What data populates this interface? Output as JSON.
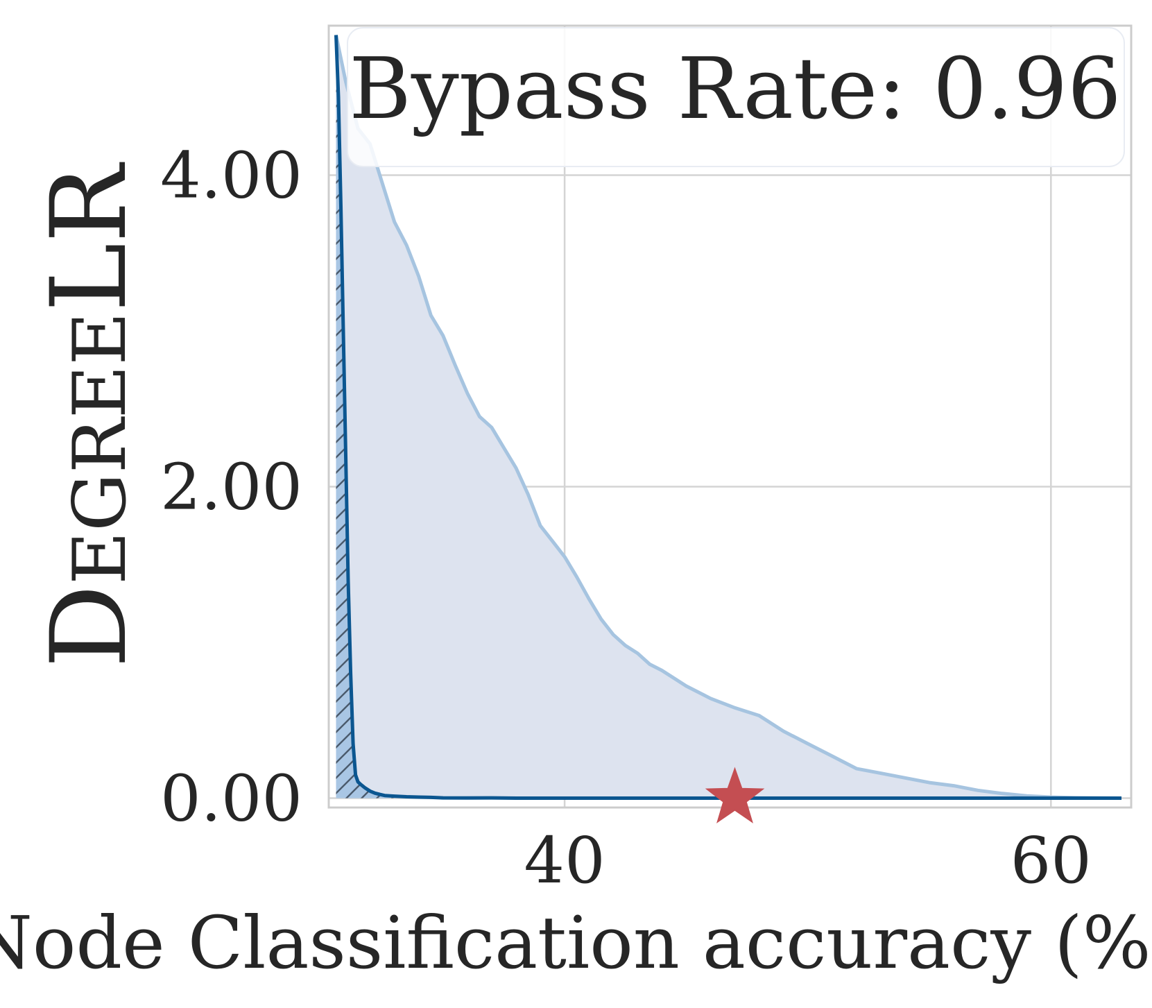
{
  "chart_data": {
    "type": "area",
    "xlabel": "Node Classification accuracy (%)",
    "ylabel": "DegreeLR",
    "annotation": "Bypass Rate: 0.96",
    "xlim": [
      30.3,
      63.3
    ],
    "ylim": [
      -0.06,
      4.96
    ],
    "xticks": [
      40,
      60
    ],
    "xtick_labels": [
      "40",
      "60"
    ],
    "yticks": [
      0,
      2,
      4
    ],
    "ytick_labels": [
      "0.00",
      "2.00",
      "4.00"
    ],
    "grid": true,
    "series": [
      {
        "role": "upper-envelope",
        "color": "#a6c4e0",
        "fill": "#dde3ef",
        "x": [
          30.6,
          31.0,
          31.5,
          32.0,
          32.5,
          33.0,
          33.5,
          34.0,
          34.5,
          35.0,
          35.5,
          36.0,
          36.5,
          37.0,
          37.5,
          38.0,
          38.5,
          39.0,
          39.5,
          40.0,
          40.5,
          41.0,
          41.5,
          42.0,
          42.5,
          43.0,
          43.5,
          44.0,
          45.0,
          46.0,
          47.0,
          48.0,
          49.0,
          50.0,
          51.0,
          52.0,
          53.0,
          54.0,
          55.0,
          56.0,
          57.0,
          58.0,
          59.0,
          60.0,
          61.0,
          62.0,
          62.9
        ],
        "y": [
          4.9,
          4.6,
          4.3,
          4.2,
          3.95,
          3.7,
          3.55,
          3.35,
          3.1,
          2.97,
          2.78,
          2.6,
          2.45,
          2.38,
          2.25,
          2.12,
          1.95,
          1.75,
          1.65,
          1.55,
          1.42,
          1.28,
          1.15,
          1.05,
          0.98,
          0.93,
          0.86,
          0.82,
          0.72,
          0.64,
          0.58,
          0.53,
          0.43,
          0.35,
          0.27,
          0.19,
          0.16,
          0.13,
          0.1,
          0.08,
          0.05,
          0.03,
          0.015,
          0.007,
          0.003,
          0.001,
          0.0
        ]
      },
      {
        "role": "median",
        "color": "#0b5690",
        "fill": "#a9c6e4",
        "hatched": true,
        "x": [
          30.6,
          30.7,
          30.8,
          30.9,
          31.0,
          31.1,
          31.2,
          31.3,
          31.4,
          31.5,
          31.6,
          31.8,
          32.0,
          32.2,
          32.4,
          32.6,
          33.0,
          33.5,
          34.0,
          34.5,
          35.0,
          36.0,
          37.0,
          38.0,
          40.0,
          45.0,
          50.0,
          55.0,
          60.0,
          62.9
        ],
        "y": [
          4.9,
          4.5,
          3.8,
          3.0,
          2.2,
          1.4,
          0.8,
          0.35,
          0.15,
          0.105,
          0.09,
          0.065,
          0.045,
          0.032,
          0.024,
          0.017,
          0.013,
          0.009,
          0.007,
          0.005,
          0.002,
          0.001,
          0.002,
          0.0,
          0.0,
          0.0,
          0.0,
          0.0,
          0.0,
          0.0
        ]
      }
    ],
    "marker": {
      "shape": "star",
      "color": "#c44e52",
      "x": 47.0,
      "y": 0.0
    }
  }
}
